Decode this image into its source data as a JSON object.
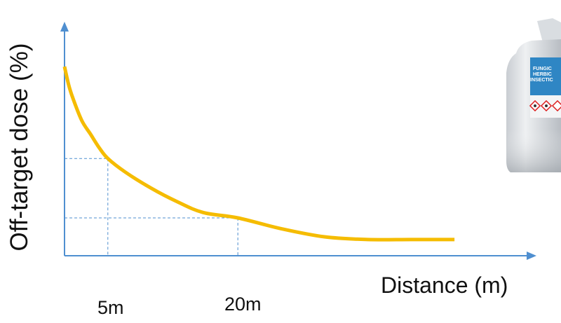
{
  "chart_data": {
    "type": "line",
    "xlabel": "Distance (m)",
    "ylabel": "Off-target dose (%)",
    "x_ticks": [
      "5m",
      "20m"
    ],
    "x_tick_values": [
      5,
      20
    ],
    "reference_points": [
      {
        "x": 5,
        "y": 36
      },
      {
        "x": 20,
        "y": 14
      }
    ],
    "series": [
      {
        "color": "#f5bc00",
        "x": [
          0,
          0.5,
          1,
          2,
          3,
          4,
          5,
          7,
          10,
          13,
          16,
          20,
          25,
          30,
          35,
          40,
          45
        ],
        "y": [
          70,
          63,
          58,
          50,
          45,
          40,
          36,
          31,
          25,
          20,
          16,
          14,
          10,
          7,
          6,
          6,
          6
        ]
      }
    ],
    "xlim": [
      0,
      53
    ],
    "ylim": [
      0,
      83
    ],
    "grid": false,
    "axis_color": "#4f8fd0"
  },
  "image": {
    "icon": "pesticide-jug-icon",
    "label_lines": [
      "FUNGIC",
      "HERBIC",
      "INSECTIC"
    ]
  }
}
